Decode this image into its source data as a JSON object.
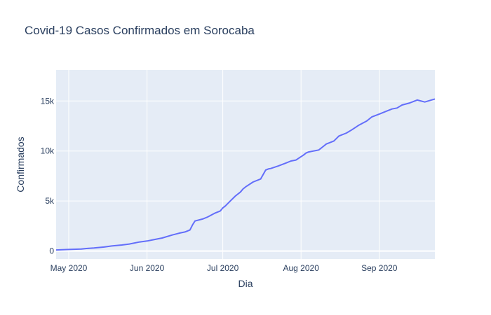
{
  "chart_data": {
    "type": "line",
    "title": "Covid-19 Casos Confirmados em Sorocaba",
    "xlabel": "Dia",
    "ylabel": "Confirmados",
    "xlim": [
      "2020-04-26",
      "2020-09-23"
    ],
    "ylim": [
      -800,
      18100
    ],
    "x_ticks": [
      {
        "date": "2020-05-01",
        "label": "May 2020"
      },
      {
        "date": "2020-06-01",
        "label": "Jun 2020"
      },
      {
        "date": "2020-07-01",
        "label": "Jul 2020"
      },
      {
        "date": "2020-08-01",
        "label": "Aug 2020"
      },
      {
        "date": "2020-09-01",
        "label": "Sep 2020"
      }
    ],
    "y_ticks": [
      {
        "value": 0,
        "label": "0"
      },
      {
        "value": 5000,
        "label": "5k"
      },
      {
        "value": 10000,
        "label": "10k"
      },
      {
        "value": 15000,
        "label": "15k"
      }
    ],
    "grid": true,
    "colors": {
      "line": "#636efa",
      "plot_bg": "#e5ecf6",
      "grid": "#ffffff"
    },
    "series": [
      {
        "x": [
          "2020-04-26",
          "2020-05-01",
          "2020-05-06",
          "2020-05-08",
          "2020-05-11",
          "2020-05-15",
          "2020-05-18",
          "2020-05-22",
          "2020-05-25",
          "2020-05-29",
          "2020-06-01",
          "2020-06-04",
          "2020-06-07",
          "2020-06-11",
          "2020-06-14",
          "2020-06-16",
          "2020-06-18",
          "2020-06-19",
          "2020-06-20",
          "2020-06-23",
          "2020-06-25",
          "2020-06-28",
          "2020-06-30",
          "2020-07-01",
          "2020-07-02",
          "2020-07-04",
          "2020-07-06",
          "2020-07-08",
          "2020-07-09",
          "2020-07-10",
          "2020-07-13",
          "2020-07-16",
          "2020-07-18",
          "2020-07-19",
          "2020-07-20",
          "2020-07-23",
          "2020-07-26",
          "2020-07-28",
          "2020-07-30",
          "2020-08-02",
          "2020-08-03",
          "2020-08-04",
          "2020-08-06",
          "2020-08-07",
          "2020-08-08",
          "2020-08-10",
          "2020-08-11",
          "2020-08-12",
          "2020-08-14",
          "2020-08-16",
          "2020-08-19",
          "2020-08-21",
          "2020-08-24",
          "2020-08-27",
          "2020-08-28",
          "2020-08-29",
          "2020-09-01",
          "2020-09-04",
          "2020-09-06",
          "2020-09-08",
          "2020-09-10",
          "2020-09-13",
          "2020-09-16",
          "2020-09-19",
          "2020-09-23"
        ],
        "y": [
          100,
          150,
          200,
          250,
          300,
          400,
          500,
          600,
          700,
          900,
          1000,
          1150,
          1300,
          1600,
          1800,
          1900,
          2100,
          2600,
          3000,
          3200,
          3400,
          3800,
          4000,
          4300,
          4500,
          5000,
          5500,
          5900,
          6200,
          6400,
          6900,
          7200,
          8100,
          8200,
          8250,
          8500,
          8800,
          9000,
          9100,
          9600,
          9800,
          9900,
          10000,
          10050,
          10100,
          10500,
          10700,
          10800,
          11000,
          11500,
          11800,
          12100,
          12600,
          13000,
          13200,
          13400,
          13700,
          14000,
          14200,
          14300,
          14600,
          14800,
          15100,
          14900,
          15200
        ]
      }
    ]
  }
}
